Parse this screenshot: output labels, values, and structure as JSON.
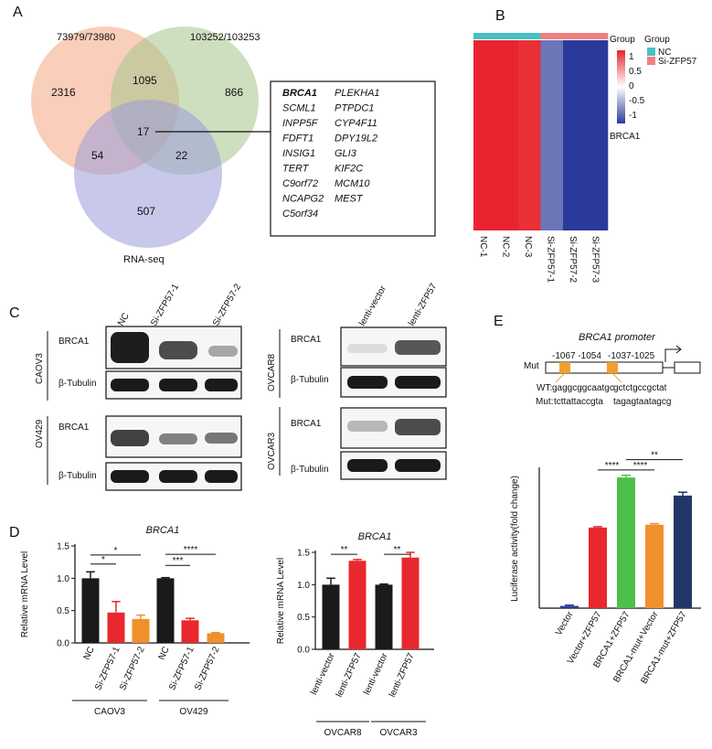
{
  "panel_letters": [
    "A",
    "B",
    "C",
    "D",
    "E"
  ],
  "venn": {
    "set_labels": [
      "73979/73980",
      "103252/103253",
      "RNA-seq"
    ],
    "counts": {
      "a_only": "2316",
      "ab": "1095",
      "b_only": "866",
      "abc": "17",
      "ac": "54",
      "bc": "22",
      "c_only": "507"
    },
    "colors": {
      "a": "#f4a582",
      "b": "#a6c48a",
      "c": "#9b9bdb"
    },
    "genes_left": [
      "BRCA1",
      "SCML1",
      "INPP5F",
      "FDFT1",
      "INSIG1",
      "TERT",
      "C9orf72",
      "NCAPG2",
      "C5orf34"
    ],
    "genes_right": [
      "PLEKHA1",
      "PTPDC1",
      "CYP4F11",
      "DPY19L2",
      "GLI3",
      "KIF2C",
      "MCM10",
      "MEST"
    ]
  },
  "heatmap": {
    "group_label": "Group",
    "legend_title": "Group",
    "legend_items": [
      {
        "name": "NC",
        "color": "#46c1c5"
      },
      {
        "name": "Si-ZFP57",
        "color": "#f08080"
      }
    ],
    "scale_ticks": [
      "1",
      "0.5",
      "0",
      "-0.5",
      "-1"
    ],
    "scale_colors": {
      "high": "#e8242e",
      "mid": "#ffffff",
      "low": "#2b3a9a"
    },
    "row_label": "BRCA1",
    "columns": [
      "NC-1",
      "NC-2",
      "NC-3",
      "Si-ZFP57-1",
      "Si-ZFP57-2",
      "Si-ZFP57-3"
    ],
    "values": [
      1.0,
      1.0,
      0.95,
      -0.7,
      -1.0,
      -1.0
    ]
  },
  "western": {
    "left_lanes": [
      "NC",
      "Si-ZFP57-1",
      "Si-ZFP57-2"
    ],
    "right_lanes": [
      "lenti-vector",
      "lenti-ZFP57"
    ],
    "cells": [
      "CAOV3",
      "OV429",
      "OVCAR8",
      "OVCAR3"
    ],
    "proteins": [
      "BRCA1",
      "β-Tubulin"
    ]
  },
  "panel_e": {
    "title": "BRCA1 promoter",
    "mut_label": "Mut",
    "site1": "-1067 -1054",
    "site2": "-1037-1025",
    "wt_label": "WT:",
    "wt_seq1": "gaggcggcaatgc",
    "wt_seq2": "gctctgccgctat",
    "mut_row_label": "Mut:",
    "mut_seq1": "tcttattaccgta",
    "mut_seq2": "tagagtaatagcg",
    "site_color": "#f0a030"
  },
  "chart_data": [
    {
      "type": "bar",
      "title": "BRCA1",
      "ylabel": "Relative mRNA Level",
      "ylim": [
        0,
        1.5
      ],
      "yticks": [
        "0.0",
        "0.5",
        "1.0",
        "1.5"
      ],
      "categories": [
        "NC",
        "Si-ZFP57-1",
        "Si-ZFP57-2",
        "NC",
        "Si-ZFP57-1",
        "Si-ZFP57-2"
      ],
      "values": [
        1.0,
        0.47,
        0.37,
        1.0,
        0.35,
        0.15
      ],
      "errors": [
        0.1,
        0.17,
        0.06,
        0.01,
        0.03,
        0.01
      ],
      "colors": [
        "#1a1a1a",
        "#e8282e",
        "#f0902a",
        "#1a1a1a",
        "#e8282e",
        "#f0902a"
      ],
      "groups": [
        "CAOV3",
        "OV429"
      ],
      "significance": [
        "*",
        "*",
        "***",
        "****"
      ]
    },
    {
      "type": "bar",
      "title": "BRCA1",
      "ylabel": "Relative mRNA Level",
      "ylim": [
        0,
        1.5
      ],
      "yticks": [
        "0.0",
        "0.5",
        "1.0",
        "1.5"
      ],
      "categories": [
        "lenti-vector",
        "lenti-ZFP57",
        "lenti-vector",
        "lenti-ZFP57"
      ],
      "values": [
        1.0,
        1.37,
        1.0,
        1.42
      ],
      "errors": [
        0.1,
        0.02,
        0.01,
        0.08
      ],
      "colors": [
        "#1a1a1a",
        "#e8282e",
        "#1a1a1a",
        "#e8282e"
      ],
      "groups": [
        "OVCAR8",
        "OVCAR3"
      ],
      "significance": [
        "**",
        "**"
      ]
    },
    {
      "type": "bar",
      "ylabel": "Luciferase activity(fold change)",
      "ylim": [
        0,
        50
      ],
      "categories": [
        "Vector",
        "Vector+ZFP57",
        "BRCA1+ZFP57",
        "BRCA1-mut+Vector",
        "BRCA1-mut+ZFP57"
      ],
      "values": [
        0.8,
        29,
        47,
        30,
        40.5
      ],
      "errors": [
        0.3,
        0.3,
        0.8,
        0.4,
        1.2
      ],
      "colors": [
        "#2a3d8f",
        "#e8282e",
        "#4cc048",
        "#f0902a",
        "#23366a"
      ],
      "significance": [
        "****",
        "****",
        "**"
      ]
    }
  ]
}
